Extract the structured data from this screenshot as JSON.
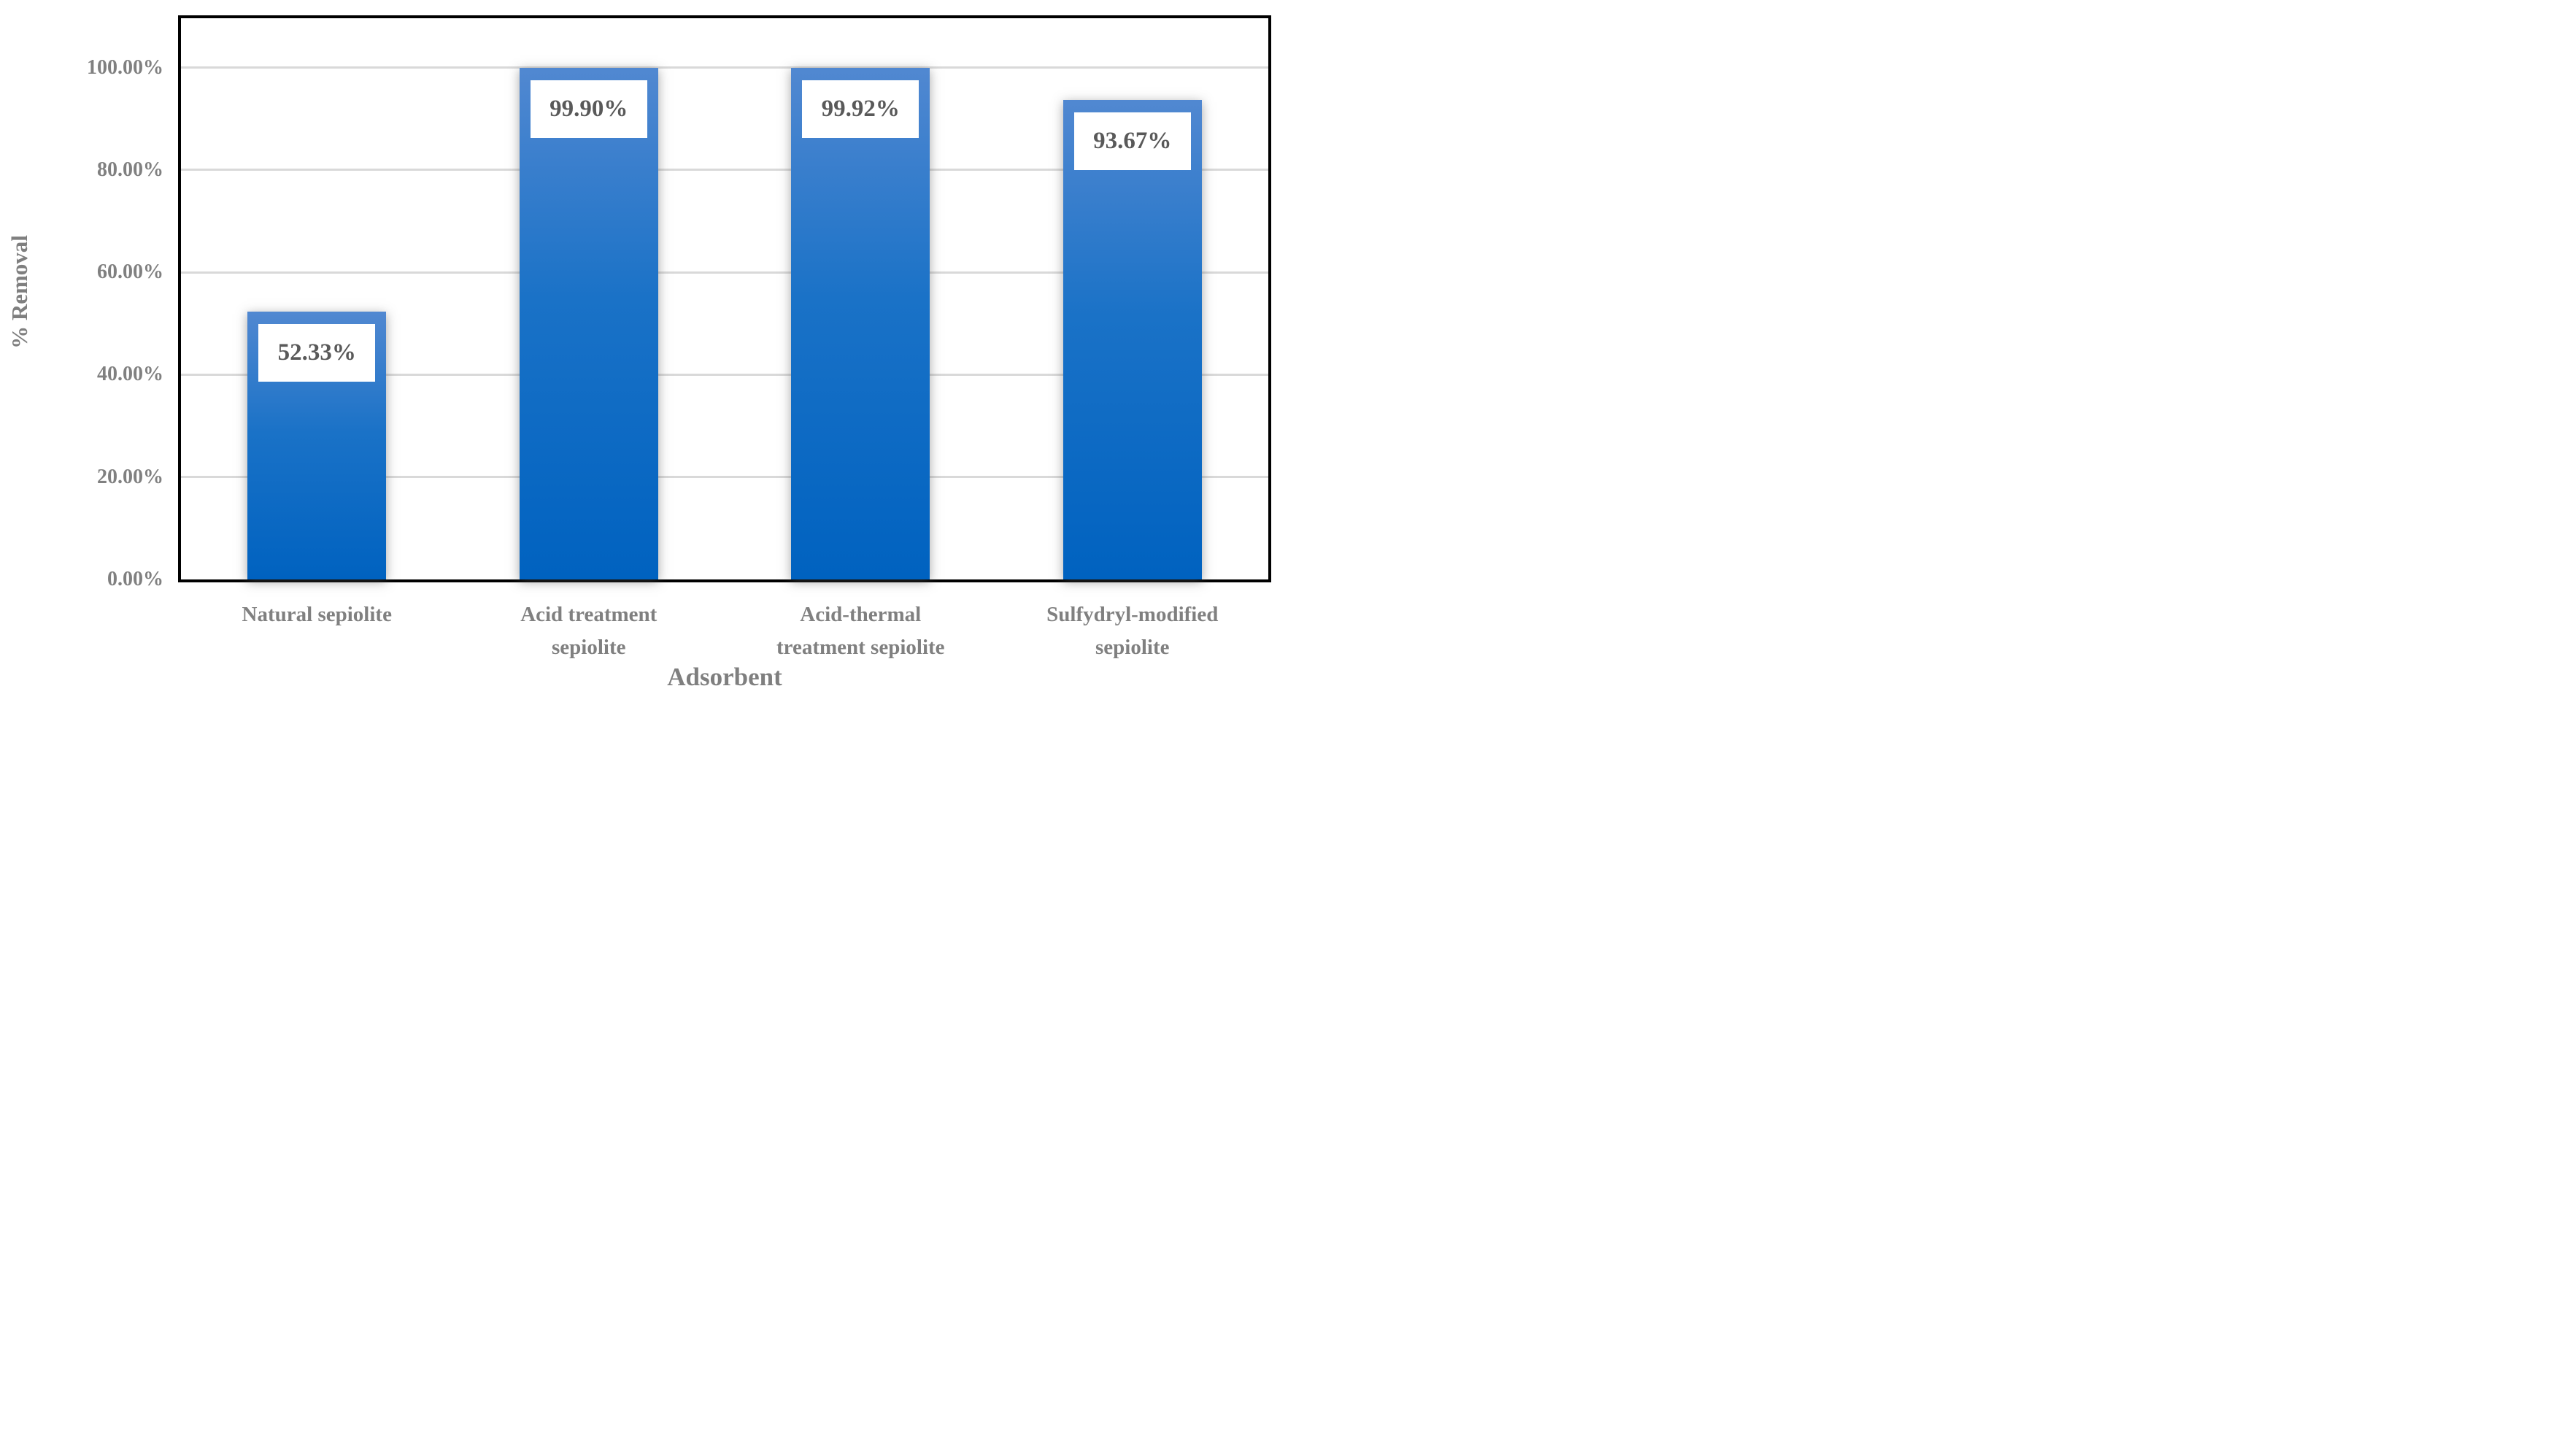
{
  "chart_data": {
    "type": "bar",
    "title": "",
    "categories": [
      "Natural sepiolite",
      "Acid treatment sepiolite",
      "Acid-thermal treatment sepiolite",
      "Sulfydryl-modified sepiolite"
    ],
    "categories_wrapped": [
      "Natural sepiolite",
      "Acid treatment\nsepiolite",
      "Acid-thermal\ntreatment sepiolite",
      "Sulfydryl-modified\nsepiolite"
    ],
    "values": [
      52.33,
      99.9,
      99.92,
      93.67
    ],
    "data_labels": [
      "52.33%",
      "99.90%",
      "99.92%",
      "93.67%"
    ],
    "xlabel": "Adsorbent",
    "ylabel": "% Removal",
    "ylim": [
      0,
      110
    ],
    "yticks": [
      0,
      20,
      40,
      60,
      80,
      100
    ],
    "ytick_labels": [
      "0.00%",
      "20.00%",
      "40.00%",
      "60.00%",
      "80.00%",
      "100.00%"
    ],
    "legend": "none",
    "grid": "horizontal-major",
    "colors": {
      "bar_gradient_top": "#5188d1",
      "bar_gradient_bottom": "#0062c0",
      "gridline": "#d9d9d9",
      "plot_border": "#000000",
      "tick_label": "#808080",
      "axis_title": "#7f7f7f",
      "category_label": "#808080",
      "data_label_text": "#595959",
      "data_label_bg": "#ffffff",
      "background": "#ffffff"
    }
  }
}
